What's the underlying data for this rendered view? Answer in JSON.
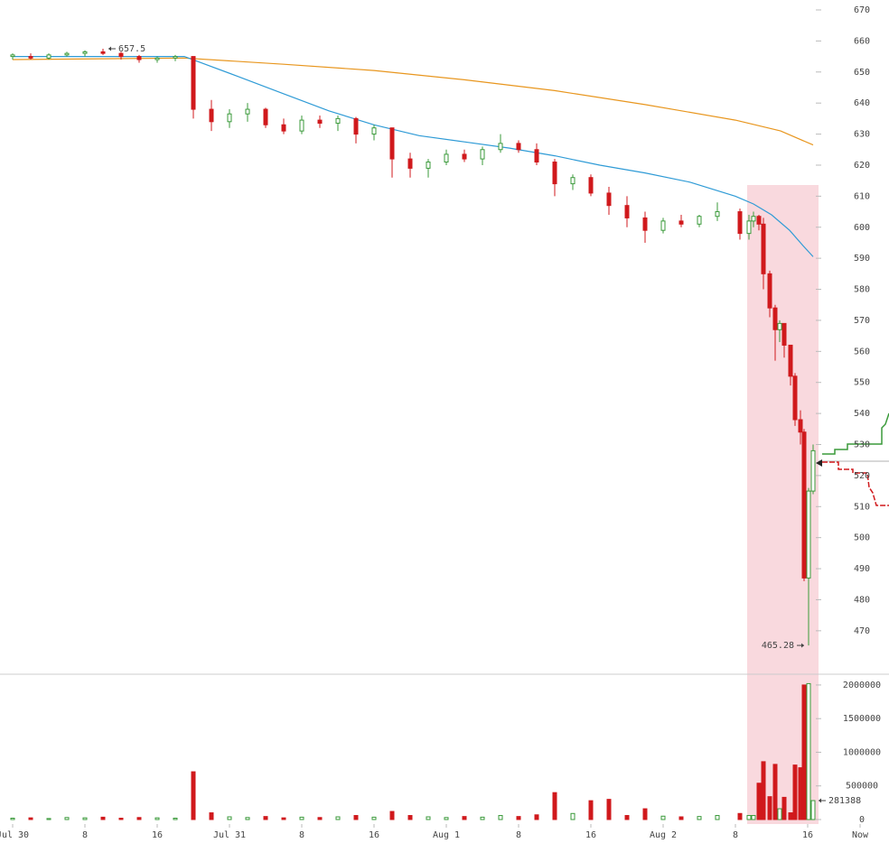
{
  "chart_data": [
    {
      "type": "candlestick",
      "xlim": [
        -1.4,
        97.0
      ],
      "ylim": [
        456.0,
        673.2
      ],
      "yticks": [
        470,
        480,
        490,
        500,
        510,
        520,
        530,
        540,
        550,
        560,
        570,
        580,
        590,
        600,
        610,
        620,
        630,
        640,
        650,
        660,
        670
      ],
      "up_color": "#3a9a3a",
      "down_color": "#d0191c",
      "x": [
        0,
        2,
        4,
        6,
        8,
        10,
        12,
        14,
        16,
        18,
        20,
        22,
        24,
        26,
        28,
        30,
        32,
        34,
        36,
        38,
        40,
        42,
        44,
        46,
        48,
        50,
        52,
        54,
        56,
        58,
        60,
        62,
        64,
        66,
        68,
        70,
        72,
        74,
        76,
        78,
        80.5,
        81.5,
        82,
        82.6,
        83.1,
        83.8,
        84.4,
        84.9,
        85.4,
        86.1,
        86.6,
        87.2,
        87.6,
        88.1,
        88.6
      ],
      "open": [
        655,
        655,
        654.5,
        655.5,
        656,
        656.5,
        656,
        655,
        654,
        654.5,
        655,
        638,
        634,
        636.5,
        638,
        633,
        631,
        634.5,
        633.5,
        635,
        630,
        632,
        622,
        619,
        621,
        623.5,
        622,
        625,
        627,
        625,
        621,
        614,
        616,
        611,
        607,
        603,
        599,
        602,
        601,
        603.5,
        605,
        598,
        602,
        603.5,
        601,
        585,
        574,
        567,
        569,
        562,
        552,
        538,
        534,
        487,
        515
      ],
      "high": [
        656,
        656,
        656,
        656.5,
        657,
        657.5,
        656.5,
        655.5,
        655,
        655.5,
        655,
        641,
        638,
        640,
        638.5,
        635,
        636,
        636,
        636,
        635.5,
        633,
        632,
        624,
        622,
        625,
        625,
        626,
        630,
        628,
        627,
        622,
        617,
        617,
        613,
        610,
        605,
        603,
        604,
        604,
        608,
        606,
        604,
        605,
        604,
        603,
        586,
        575,
        570,
        569,
        562,
        553,
        541,
        535,
        516,
        530
      ],
      "low": [
        654,
        654,
        654,
        655,
        655,
        655.5,
        654,
        653,
        653,
        653.5,
        635,
        631,
        632,
        634,
        632,
        630,
        630,
        632,
        631,
        627,
        628,
        616,
        616,
        616,
        620,
        621,
        620,
        624,
        624,
        620,
        610,
        612,
        610,
        604,
        600,
        595,
        598,
        600,
        600,
        602,
        596,
        596,
        600,
        599,
        580,
        571,
        557,
        563,
        558,
        549,
        536,
        530,
        486,
        465.28,
        514
      ],
      "close": [
        655.5,
        654.5,
        655.5,
        656,
        656.5,
        656,
        655,
        654,
        654.5,
        655,
        638,
        634,
        636.5,
        638,
        633,
        631,
        634.5,
        633.5,
        635,
        630,
        632,
        622,
        619,
        621,
        623.5,
        622,
        625,
        627,
        625,
        621,
        614,
        616,
        611,
        607,
        603,
        599,
        602,
        601,
        603.5,
        605,
        598,
        602,
        603.5,
        601,
        585,
        574,
        567,
        569,
        562,
        552,
        538,
        534,
        487,
        515,
        528
      ],
      "lines": [
        {
          "color": "#e8961e",
          "x": [
            0,
            19,
            30,
            40,
            50,
            60,
            70,
            80,
            85,
            88.6
          ],
          "values": [
            654,
            654.5,
            652.5,
            650.5,
            647.5,
            644,
            639.5,
            634.5,
            631,
            626.5
          ]
        },
        {
          "color": "#2f9bd6",
          "x": [
            0,
            19,
            25,
            30,
            35,
            40,
            45,
            50,
            55,
            60,
            65,
            70,
            75,
            80,
            82,
            84,
            86,
            87.5,
            88.6
          ],
          "values": [
            655,
            655,
            648.5,
            643,
            637.5,
            633,
            629.5,
            627.5,
            625.5,
            623,
            620,
            617.5,
            614.5,
            610,
            607.5,
            604,
            599,
            594,
            590.5
          ]
        }
      ],
      "annotations": [
        {
          "x": 10,
          "value": 657.5,
          "side": "right"
        },
        {
          "x": 88.1,
          "value": 465.28,
          "side": "left"
        }
      ]
    },
    {
      "type": "bar",
      "xlim": [
        -1.4,
        97.0
      ],
      "ylim": [
        0,
        2160000
      ],
      "yticks": [
        0,
        500000,
        1000000,
        1500000,
        2000000
      ],
      "xticks": [
        {
          "value": 0,
          "label": "Jul 30"
        },
        8,
        16,
        {
          "value": 24,
          "label": "Jul 31"
        },
        {
          "value": 32,
          "label": "8"
        },
        {
          "value": 40,
          "label": "16"
        },
        {
          "value": 48,
          "label": "Aug 1"
        },
        {
          "value": 56,
          "label": "8"
        },
        {
          "value": 64,
          "label": "16"
        },
        {
          "value": 72,
          "label": "Aug 2"
        },
        {
          "value": 80,
          "label": "8"
        },
        {
          "value": 88,
          "label": "16"
        },
        {
          "value": 93.8,
          "label": "Now"
        }
      ],
      "values": [
        20000,
        25000,
        15000,
        30000,
        25000,
        35000,
        20000,
        30000,
        25000,
        20000,
        710000,
        100000,
        40000,
        30000,
        45000,
        25000,
        35000,
        30000,
        40000,
        60000,
        35000,
        120000,
        60000,
        40000,
        30000,
        45000,
        35000,
        60000,
        45000,
        70000,
        400000,
        90000,
        280000,
        300000,
        60000,
        160000,
        50000,
        40000,
        45000,
        60000,
        90000,
        60000,
        60000,
        540000,
        860000,
        340000,
        820000,
        160000,
        330000,
        100000,
        810000,
        770000,
        2000000,
        2020000,
        281388
      ],
      "annotations": [
        {
          "x": 88.6,
          "value": 281388,
          "side": "right"
        }
      ]
    }
  ]
}
